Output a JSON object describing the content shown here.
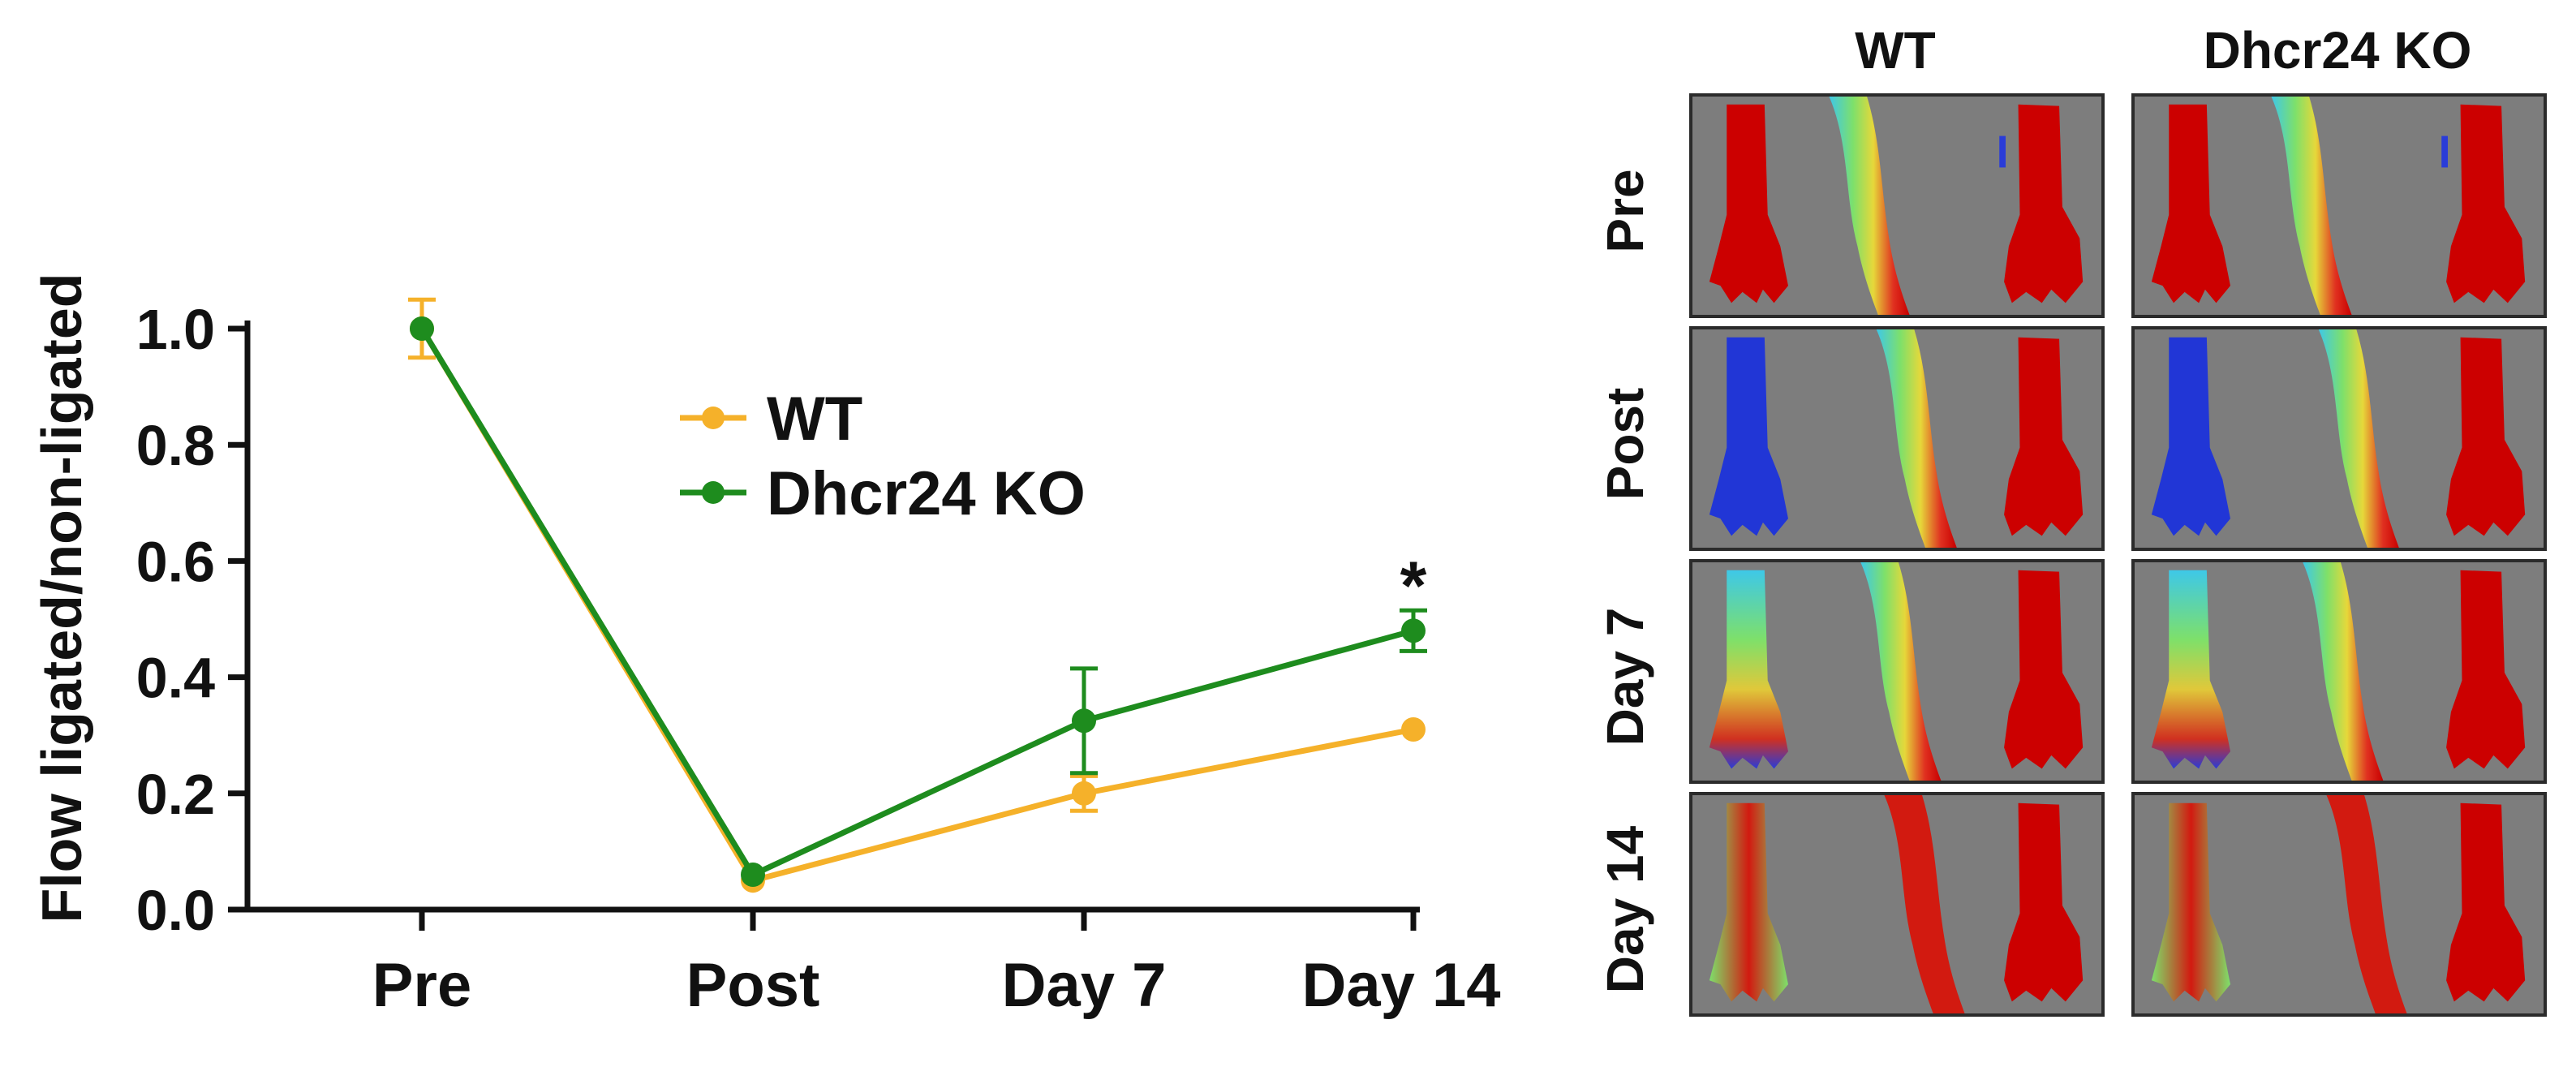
{
  "chart_data": {
    "type": "line",
    "ylabel": "Flow ligated/non-ligated",
    "xlabel": "",
    "categories": [
      "Pre",
      "Post",
      "Day 7",
      "Day 14"
    ],
    "ylim": [
      0,
      1.0
    ],
    "yticks": [
      "0.0",
      "0.2",
      "0.4",
      "0.6",
      "0.8",
      "1.0"
    ],
    "ytick_values": [
      0,
      0.2,
      0.4,
      0.6,
      0.8,
      1.0
    ],
    "legend_position": "top-center",
    "series": [
      {
        "name": "WT",
        "color": "#f5b12a",
        "values": [
          1.0,
          0.05,
          0.2,
          0.31
        ],
        "errors": [
          0.05,
          0.01,
          0.03,
          0.01
        ]
      },
      {
        "name": "Dhcr24 KO",
        "color": "#1e8c1e",
        "values": [
          1.0,
          0.06,
          0.325,
          0.48
        ],
        "errors": [
          0.01,
          0.01,
          0.09,
          0.035
        ]
      }
    ],
    "annotations": [
      {
        "text": "*",
        "category": "Day 14",
        "value": 0.58
      }
    ]
  },
  "image_panel": {
    "columns": [
      "WT",
      "Dhcr24 KO"
    ],
    "rows": [
      "Pre",
      "Post",
      "Day 7",
      "Day 14"
    ]
  }
}
